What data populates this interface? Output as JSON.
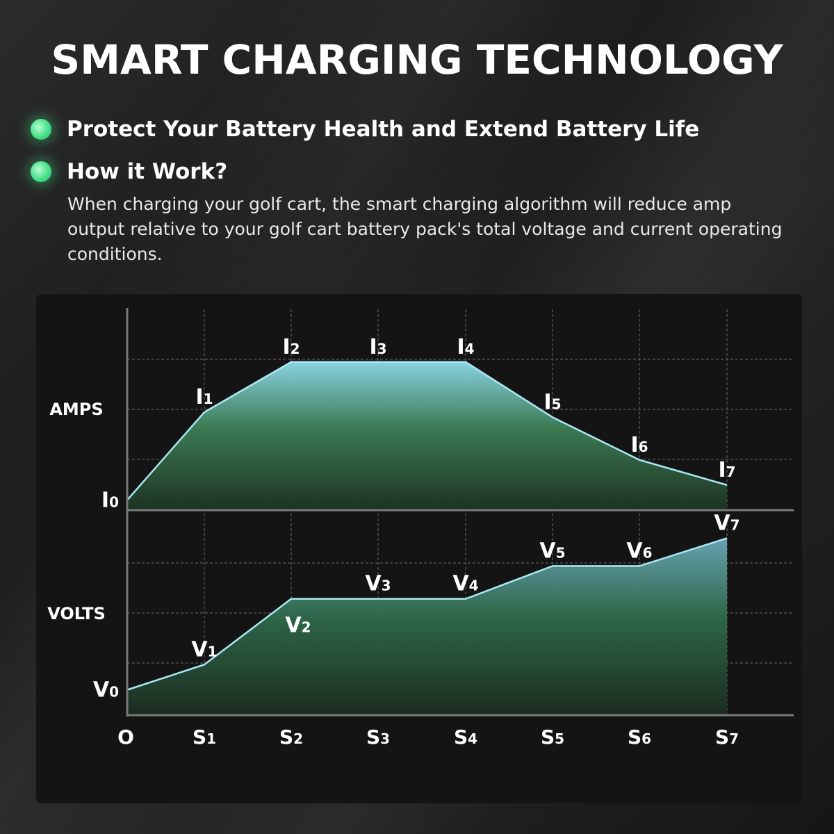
{
  "header": {
    "title": "SMART CHARGING TECHNOLOGY"
  },
  "bullets": [
    {
      "text": "Protect Your Battery Health and Extend Battery Life"
    },
    {
      "text": "How it Work?"
    }
  ],
  "description": "When charging your golf cart, the smart charging algorithm will reduce amp output relative to your golf cart battery pack's total voltage and current operating conditions.",
  "colors": {
    "accent_dot": "#46e08a",
    "line": "#a9e8f4",
    "fill_top": "#7fd3e6",
    "fill_bottom": "#1f3a25"
  },
  "chart_data": [
    {
      "type": "area",
      "ylabel": "AMPS",
      "x": [
        "O",
        "S1",
        "S2",
        "S3",
        "S4",
        "S5",
        "S6",
        "S7"
      ],
      "values": [
        0.2,
        1.95,
        2.95,
        2.95,
        2.95,
        1.85,
        1.0,
        0.5
      ],
      "point_labels": [
        "I0",
        "I1",
        "I2",
        "I3",
        "I4",
        "I5",
        "I6",
        "I7"
      ],
      "ylim": [
        0,
        4
      ],
      "grid": true
    },
    {
      "type": "area",
      "ylabel": "VOLTS",
      "x": [
        "O",
        "S1",
        "S2",
        "S3",
        "S4",
        "S5",
        "S6",
        "S7"
      ],
      "values": [
        0.5,
        1.0,
        2.3,
        2.3,
        2.3,
        2.95,
        2.95,
        3.5
      ],
      "point_labels": [
        "V0",
        "V1",
        "V2",
        "V3",
        "V4",
        "V5",
        "V6",
        "V7"
      ],
      "ylim": [
        0,
        4
      ],
      "grid": true
    }
  ]
}
